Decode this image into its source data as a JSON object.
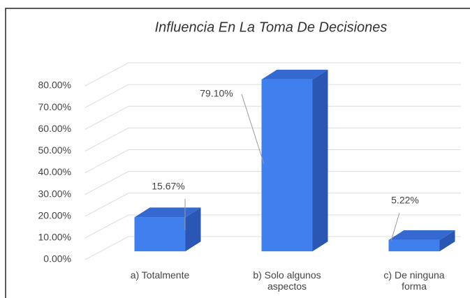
{
  "chart_data": {
    "type": "bar3d",
    "title": "Influencia En La Toma De Decisiones",
    "categories": [
      "a) Totalmente",
      "b) Solo algunos aspectos",
      "c) De ninguna forma"
    ],
    "values": [
      15.67,
      79.1,
      5.22
    ],
    "value_labels": [
      "15.67%",
      "79.10%",
      "5.22%"
    ],
    "color": "#3f7fee",
    "ylim": [
      0,
      80
    ],
    "yticks": [
      {
        "value": 0,
        "label": "0.00%"
      },
      {
        "value": 10,
        "label": "10.00%"
      },
      {
        "value": 20,
        "label": "20.00%"
      },
      {
        "value": 30,
        "label": "30.00%"
      },
      {
        "value": 40,
        "label": "40.00%"
      },
      {
        "value": 50,
        "label": "50.00%"
      },
      {
        "value": 60,
        "label": "60.00%"
      },
      {
        "value": 70,
        "label": "70.00%"
      },
      {
        "value": 80,
        "label": "80.00%"
      }
    ],
    "grid": true
  }
}
